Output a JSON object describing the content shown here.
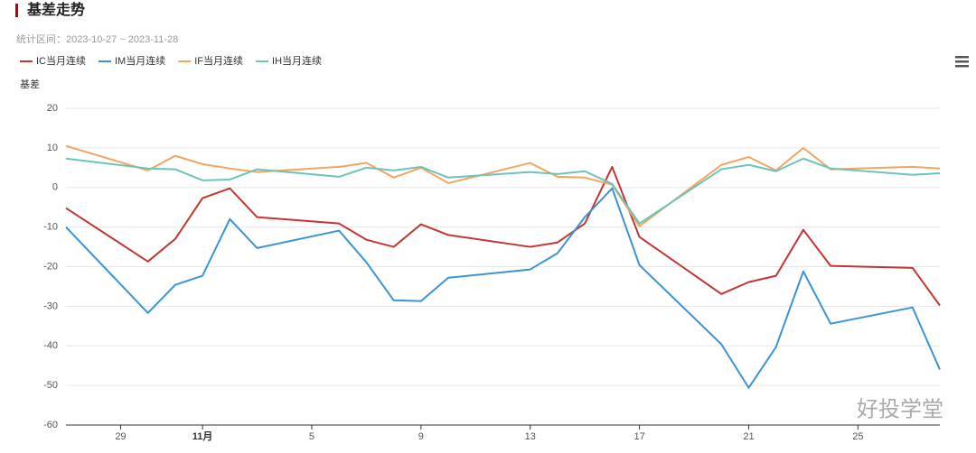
{
  "chart_data": {
    "type": "line",
    "title": "基差走势",
    "subtitle": "统计区间：2023-10-27 ~ 2023-11-28",
    "y_label": "基差",
    "watermark": "好投学堂",
    "x": [
      "2023-10-27",
      "2023-10-30",
      "2023-10-31",
      "2023-11-01",
      "2023-11-02",
      "2023-11-03",
      "2023-11-06",
      "2023-11-07",
      "2023-11-08",
      "2023-11-09",
      "2023-11-10",
      "2023-11-13",
      "2023-11-14",
      "2023-11-15",
      "2023-11-16",
      "2023-11-17",
      "2023-11-20",
      "2023-11-21",
      "2023-11-22",
      "2023-11-23",
      "2023-11-24",
      "2023-11-27",
      "2023-11-28"
    ],
    "xlim": [
      "2023-10-27",
      "2023-11-28"
    ],
    "xticks": [
      {
        "value": "2023-10-29",
        "label": "29"
      },
      {
        "value": "2023-11-01",
        "label": "11月"
      },
      {
        "value": "2023-11-05",
        "label": "5"
      },
      {
        "value": "2023-11-09",
        "label": "9"
      },
      {
        "value": "2023-11-13",
        "label": "13"
      },
      {
        "value": "2023-11-17",
        "label": "17"
      },
      {
        "value": "2023-11-21",
        "label": "21"
      },
      {
        "value": "2023-11-25",
        "label": "25"
      }
    ],
    "ylim": [
      -60,
      20
    ],
    "yticks": [
      -60,
      -50,
      -40,
      -30,
      -20,
      -10,
      0,
      10,
      20
    ],
    "grid": true,
    "series": [
      {
        "name": "IC当月连续",
        "color": "#c23531",
        "values": [
          -5.2,
          -18.7,
          -13,
          -2.7,
          -0.2,
          -7.5,
          -9.1,
          -13.2,
          -15,
          -9.3,
          -12,
          -15,
          -13.9,
          -9.1,
          5.2,
          -12.5,
          -26.9,
          -23.9,
          -22.3,
          -10.7,
          -19.8,
          -20.3,
          -29.8
        ]
      },
      {
        "name": "IM当月连续",
        "color": "#3a94d4",
        "values": [
          -10,
          -31.7,
          -24.6,
          -22.3,
          -8,
          -15.3,
          -10.9,
          -18.9,
          -28.5,
          -28.7,
          -22.8,
          -20.7,
          -16.6,
          -7.5,
          -0.2,
          -19.6,
          -39.6,
          -50.6,
          -40.3,
          -21.2,
          -34.4,
          -30.3,
          -46
        ]
      },
      {
        "name": "IF当月连续",
        "color": "#f4a462",
        "values": [
          10.5,
          4.3,
          8,
          5.9,
          4.8,
          3.9,
          5.2,
          6.2,
          2.5,
          5,
          1.1,
          6.2,
          2.7,
          2.5,
          0.7,
          -9.8,
          5.7,
          7.7,
          4.3,
          10,
          4.6,
          5.2,
          4.8
        ]
      },
      {
        "name": "IH当月连续",
        "color": "#6cc3b8",
        "values": [
          7.3,
          4.8,
          4.6,
          1.8,
          2,
          4.6,
          2.7,
          5,
          4.3,
          5.2,
          2.5,
          3.9,
          3.4,
          4.1,
          0.9,
          -9.1,
          4.6,
          5.7,
          4.1,
          7.3,
          4.8,
          3.2,
          3.6
        ]
      }
    ]
  }
}
